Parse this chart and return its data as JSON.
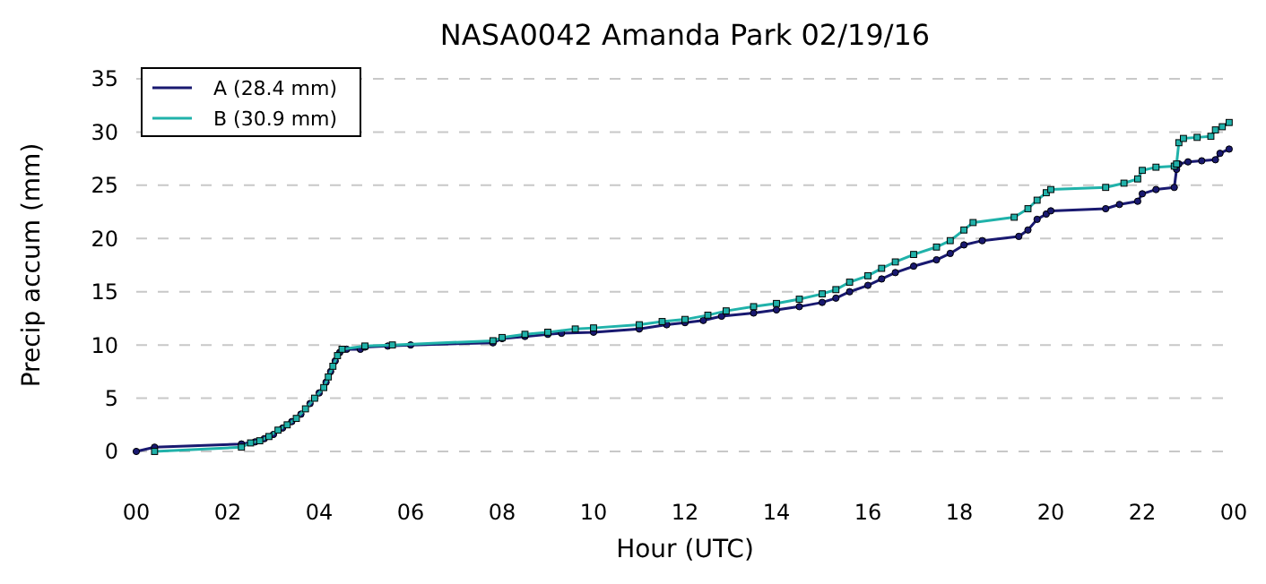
{
  "chart_data": {
    "type": "line",
    "title": "NASA0042 Amanda Park 02/19/16",
    "xlabel": "Hour (UTC)",
    "ylabel": "Precip accum (mm)",
    "xlim": [
      0,
      24
    ],
    "xticks": [
      {
        "value": 0,
        "label": "00"
      },
      {
        "value": 2,
        "label": "02"
      },
      {
        "value": 4,
        "label": "04"
      },
      {
        "value": 6,
        "label": "06"
      },
      {
        "value": 8,
        "label": "08"
      },
      {
        "value": 10,
        "label": "10"
      },
      {
        "value": 12,
        "label": "12"
      },
      {
        "value": 14,
        "label": "14"
      },
      {
        "value": 16,
        "label": "16"
      },
      {
        "value": 18,
        "label": "18"
      },
      {
        "value": 20,
        "label": "20"
      },
      {
        "value": 22,
        "label": "22"
      },
      {
        "value": 24,
        "label": "00"
      }
    ],
    "ylim": [
      0,
      35
    ],
    "yticks": [
      0,
      5,
      10,
      15,
      20,
      25,
      30,
      35
    ],
    "grid": "y",
    "legend": "top left",
    "line_style": "solid",
    "series": [
      {
        "name": "A (28.4 mm)",
        "color": "#191970",
        "marker": "circle",
        "x": [
          0,
          0.4,
          2.3,
          2.6,
          2.8,
          3.0,
          3.2,
          3.4,
          3.6,
          3.8,
          4.0,
          4.15,
          4.25,
          4.35,
          4.45,
          4.6,
          4.9,
          5.0,
          5.5,
          6.0,
          7.8,
          8.0,
          8.5,
          9.0,
          9.3,
          10.0,
          11.0,
          11.6,
          12.0,
          12.4,
          12.8,
          13.5,
          14.0,
          14.5,
          15.0,
          15.3,
          15.6,
          16.0,
          16.3,
          16.6,
          17.0,
          17.5,
          17.8,
          18.1,
          18.5,
          19.3,
          19.5,
          19.7,
          19.9,
          20.0,
          21.2,
          21.5,
          21.9,
          22.0,
          22.3,
          22.7,
          22.75,
          22.8,
          23.0,
          23.3,
          23.6,
          23.7,
          23.9
        ],
        "values": [
          0,
          0.4,
          0.7,
          0.9,
          1.2,
          1.6,
          2.2,
          2.8,
          3.5,
          4.5,
          5.5,
          6.5,
          7.5,
          8.5,
          9.3,
          9.6,
          9.6,
          9.8,
          9.9,
          10.0,
          10.2,
          10.6,
          10.8,
          11.0,
          11.1,
          11.2,
          11.5,
          11.9,
          12.1,
          12.3,
          12.7,
          13.0,
          13.3,
          13.6,
          14.0,
          14.4,
          15.0,
          15.6,
          16.2,
          16.8,
          17.4,
          18.0,
          18.6,
          19.4,
          19.8,
          20.2,
          20.8,
          21.8,
          22.3,
          22.6,
          22.8,
          23.2,
          23.5,
          24.2,
          24.6,
          24.8,
          26.5,
          27.0,
          27.2,
          27.3,
          27.4,
          28.0,
          28.4
        ]
      },
      {
        "name": "B (30.9 mm)",
        "color": "#20b2aa",
        "marker": "square",
        "x": [
          0.4,
          2.3,
          2.5,
          2.7,
          2.9,
          3.1,
          3.3,
          3.5,
          3.7,
          3.9,
          4.1,
          4.2,
          4.3,
          4.4,
          4.5,
          5.0,
          5.6,
          7.8,
          8.0,
          8.5,
          9.0,
          9.6,
          10.0,
          11.0,
          11.5,
          12.0,
          12.5,
          12.9,
          13.5,
          14.0,
          14.5,
          15.0,
          15.3,
          15.6,
          16.0,
          16.3,
          16.6,
          17.0,
          17.5,
          17.8,
          18.1,
          18.3,
          19.2,
          19.5,
          19.7,
          19.9,
          20.0,
          21.2,
          21.6,
          21.9,
          22.0,
          22.3,
          22.7,
          22.75,
          22.8,
          22.9,
          23.2,
          23.5,
          23.6,
          23.75,
          23.9
        ],
        "values": [
          0,
          0.4,
          0.8,
          1.0,
          1.4,
          2.0,
          2.5,
          3.1,
          4.0,
          5.0,
          6.0,
          7.0,
          8.0,
          9.0,
          9.6,
          9.9,
          10.0,
          10.4,
          10.7,
          11.0,
          11.2,
          11.5,
          11.6,
          11.9,
          12.2,
          12.4,
          12.8,
          13.2,
          13.6,
          13.9,
          14.3,
          14.8,
          15.2,
          15.9,
          16.5,
          17.2,
          17.8,
          18.5,
          19.2,
          19.8,
          20.8,
          21.5,
          22.0,
          22.8,
          23.6,
          24.3,
          24.6,
          24.8,
          25.2,
          25.6,
          26.4,
          26.7,
          26.8,
          27.0,
          29.0,
          29.4,
          29.5,
          29.6,
          30.2,
          30.5,
          30.9
        ]
      }
    ]
  }
}
